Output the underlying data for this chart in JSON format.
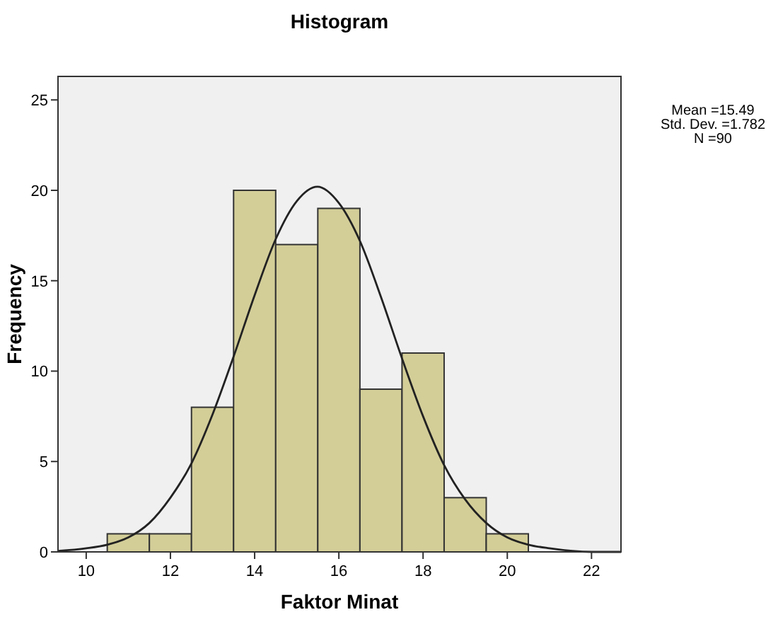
{
  "chart_data": {
    "type": "histogram",
    "title": "Histogram",
    "xlabel": "Faktor Minat",
    "ylabel": "Frequency",
    "annotations": [
      "Mean =15.49",
      "Std. Dev. =1.782",
      "N =90"
    ],
    "xlim": [
      9.33,
      22.7
    ],
    "ylim": [
      0,
      26.3
    ],
    "xticks": [
      10,
      12,
      14,
      16,
      18,
      20,
      22
    ],
    "yticks": [
      0,
      5,
      10,
      15,
      20,
      25
    ],
    "grid": false,
    "series": [
      {
        "color": "#d3ce98",
        "bins": [
          10.5,
          11.5,
          12.5,
          13.5,
          14.5,
          15.5,
          16.5,
          17.5,
          18.5,
          19.5,
          20.5
        ],
        "values": [
          1,
          1,
          8,
          20,
          17,
          19,
          9,
          11,
          3,
          1
        ]
      },
      {
        "type": "line",
        "color": "#222222",
        "x": [
          9.33,
          10,
          10.5,
          11,
          11.5,
          12,
          12.5,
          13,
          13.5,
          14,
          14.5,
          15,
          15.49,
          16,
          16.5,
          17,
          17.5,
          18,
          18.5,
          19,
          19.5,
          20,
          20.5,
          21,
          22,
          22.7
        ],
        "values": [
          0.05,
          0.2,
          0.4,
          0.8,
          1.6,
          3,
          4.9,
          7.6,
          10.8,
          14.2,
          17.3,
          19.4,
          20.2,
          19.3,
          17.2,
          14.1,
          10.7,
          7.5,
          4.8,
          2.9,
          1.6,
          0.8,
          0.4,
          0.2,
          0,
          0
        ]
      }
    ]
  }
}
